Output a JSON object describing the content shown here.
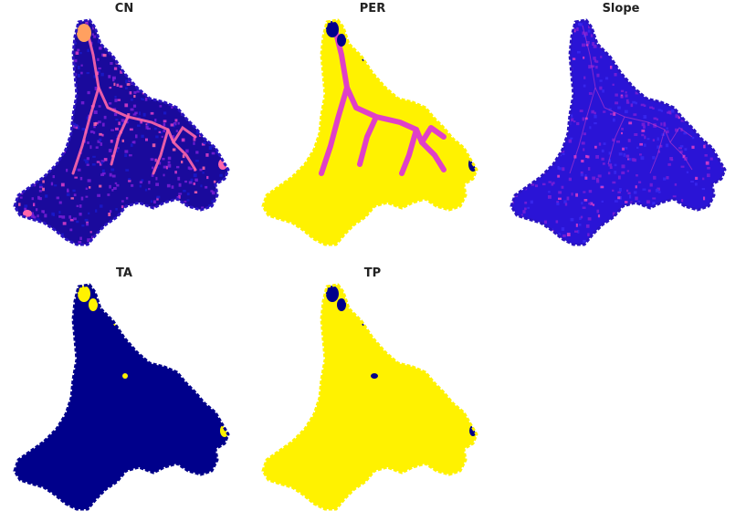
{
  "panels": [
    {
      "id": "cn",
      "title": "CN",
      "style": "cn"
    },
    {
      "id": "per",
      "title": "PER",
      "style": "per"
    },
    {
      "id": "slope",
      "title": "Slope",
      "style": "slope"
    },
    {
      "id": "ta",
      "title": "TA",
      "style": "ta"
    },
    {
      "id": "tp",
      "title": "TP",
      "style": "tp"
    }
  ],
  "colors": {
    "navy": "#00008b",
    "blue": "#1a1acc",
    "purple": "#7b1fd6",
    "magenta": "#e040c8",
    "pink": "#ff66aa",
    "orange": "#ffa060",
    "yellow": "#fff200"
  }
}
